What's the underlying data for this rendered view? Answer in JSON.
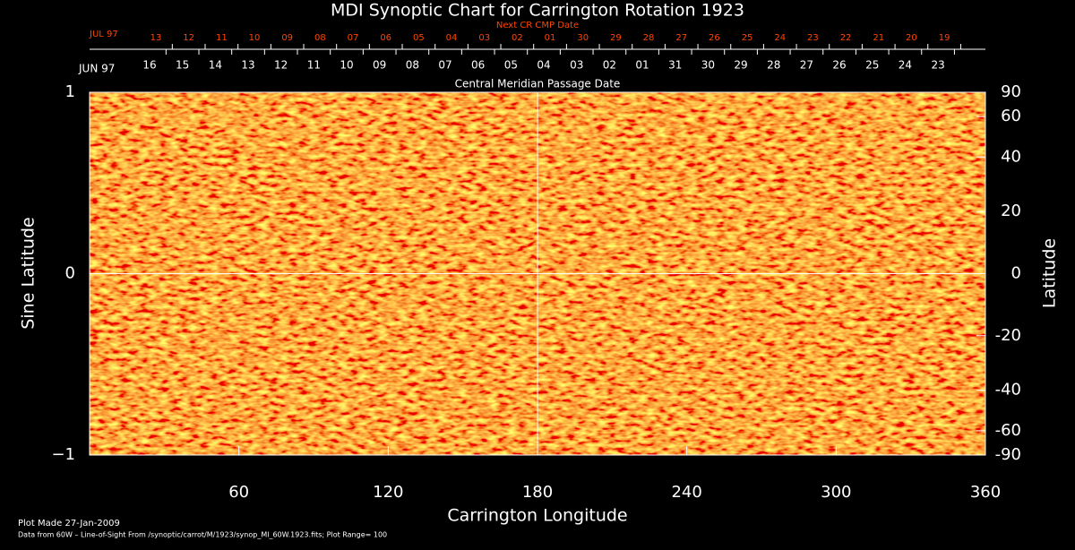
{
  "chart_data": {
    "type": "heatmap",
    "title": "MDI Synoptic Chart for Carrington Rotation 1923",
    "xlabel": "Carrington Longitude",
    "ylabel": "Sine Latitude",
    "y2label": "Latitude",
    "xlim": [
      0,
      360
    ],
    "xticks": [
      60,
      120,
      180,
      240,
      300,
      360
    ],
    "ylim": [
      -1,
      1
    ],
    "yticks": [
      {
        "value": -1,
        "label": "−1"
      },
      0,
      1
    ],
    "y2lim": [
      -90,
      90
    ],
    "y2scale": "sine",
    "y2ticks": [
      90,
      60,
      40,
      20,
      0,
      -20,
      -40,
      -60,
      -90
    ],
    "reference_lines": {
      "x": [
        180
      ],
      "y": [
        0
      ]
    },
    "top_axes": [
      {
        "label": "Central Meridian Passage Date",
        "start_label": "JUN 97",
        "color": "#ffffff",
        "categories": [
          "16",
          "15",
          "14",
          "13",
          "12",
          "11",
          "10",
          "09",
          "08",
          "07",
          "06",
          "05",
          "04",
          "03",
          "02",
          "01",
          "31",
          "30",
          "29",
          "28",
          "27",
          "26",
          "25",
          "24",
          "23"
        ]
      },
      {
        "label": "Next CR CMP Date",
        "start_label": "JUL 97",
        "color": "#ff4500",
        "categories": [
          "13",
          "12",
          "11",
          "10",
          "09",
          "08",
          "07",
          "06",
          "05",
          "04",
          "03",
          "02",
          "01",
          "30",
          "29",
          "28",
          "27",
          "26",
          "25",
          "24",
          "23",
          "22",
          "21",
          "20",
          "19"
        ]
      }
    ],
    "notes": [
      "Plot Made 27-Jan-2009",
      "Data from 60W – Line-of-Sight From /synoptic/carrot/M/1923/synop_Ml_60W.1923.fits; Plot Range=  100"
    ]
  }
}
